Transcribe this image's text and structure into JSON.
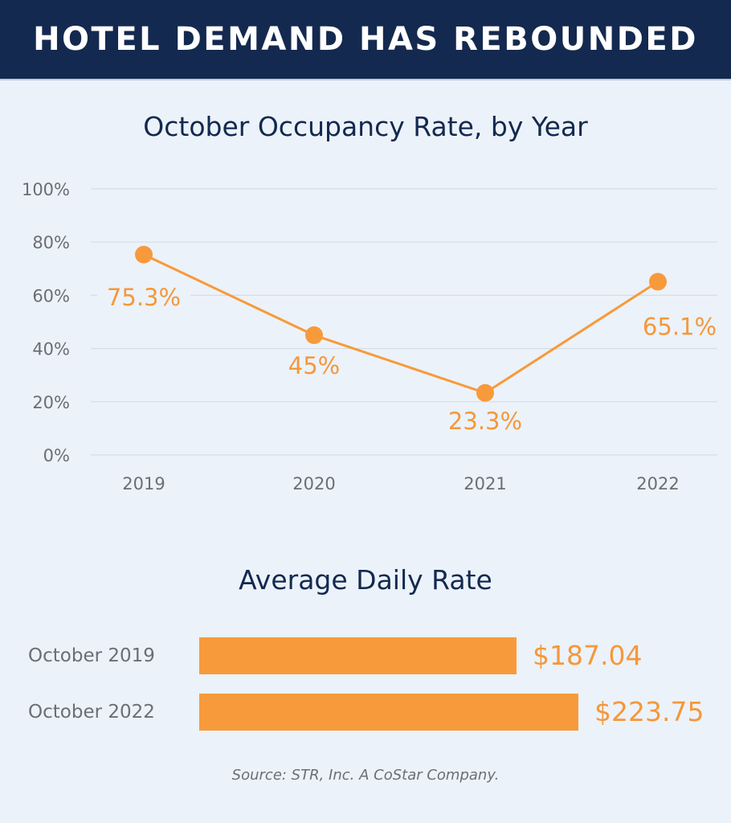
{
  "header": {
    "title": "HOTEL DEMAND HAS REBOUNDED"
  },
  "colors": {
    "header_bg": "#13294f",
    "accent": "#f79a3b",
    "label_orange": "#f4983a",
    "axis_text": "#6b6e73",
    "background": "#ecf2f9",
    "gridline": "#d6dde6"
  },
  "line_chart": {
    "title": "October Occupancy Rate, by Year",
    "y_ticks": [
      "100%",
      "80%",
      "60%",
      "40%",
      "20%",
      "0%"
    ],
    "x_ticks": [
      "2019",
      "2020",
      "2021",
      "2022"
    ],
    "point_labels": [
      "75.3%",
      "45%",
      "23.3%",
      "65.1%"
    ]
  },
  "bar_chart": {
    "title": "Average Daily Rate",
    "rows": [
      {
        "label": "October 2019",
        "value_label": "$187.04"
      },
      {
        "label": "October 2022",
        "value_label": "$223.75"
      }
    ]
  },
  "source": "Source: STR, Inc. A CoStar Company.",
  "chart_data": [
    {
      "type": "line",
      "title": "October Occupancy Rate, by Year",
      "categories": [
        "2019",
        "2020",
        "2021",
        "2022"
      ],
      "values": [
        75.3,
        45,
        23.3,
        65.1
      ],
      "data_labels": [
        "75.3%",
        "45%",
        "23.3%",
        "65.1%"
      ],
      "xlabel": "",
      "ylabel": "",
      "ylim": [
        0,
        100
      ],
      "y_ticks": [
        0,
        20,
        40,
        60,
        80,
        100
      ],
      "y_tick_format": "percent",
      "grid": true,
      "legend": "none",
      "color": "#f79a3b"
    },
    {
      "type": "bar",
      "orientation": "horizontal",
      "title": "Average Daily Rate",
      "categories": [
        "October 2019",
        "October 2022"
      ],
      "values": [
        187.04,
        223.75
      ],
      "data_labels": [
        "$187.04",
        "$223.75"
      ],
      "xlabel": "",
      "ylabel": "",
      "grid": false,
      "legend": "none",
      "color": "#f79a3b"
    }
  ]
}
